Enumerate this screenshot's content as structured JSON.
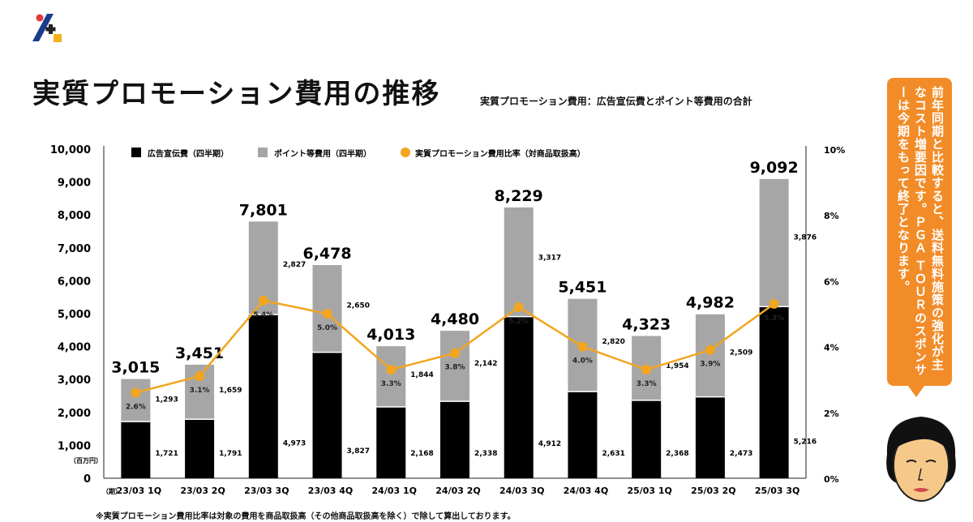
{
  "page": {
    "title": "実質プロモーション費用の推移",
    "subtitle": "実質プロモーション費用：広告宣伝費とポイント等費用の合計",
    "footnote": "※実質プロモーション費用比率は対象の費用を商品取扱高（その他商品取扱高を除く）で除して算出しております。"
  },
  "speech_bubble": {
    "text": "前年同期と比較すると、送料無料施策の強化が主なコスト増要因です。ＰＧＡ ＴＯＵＲのスポンサーは今期をもって終了となります。"
  },
  "colors": {
    "ad": "#000000",
    "point": "#a6a6a6",
    "ratio": "#f2a520",
    "bubble": "#f28c28"
  },
  "icons": [
    "logo-icon",
    "avatar-icon"
  ],
  "chart_data": {
    "type": "bar",
    "stacked": true,
    "categories": [
      "23/03 1Q",
      "23/03 2Q",
      "23/03 3Q",
      "23/03 4Q",
      "24/03 1Q",
      "24/03 2Q",
      "24/03 3Q",
      "24/03 4Q",
      "25/03 1Q",
      "25/03 2Q",
      "25/03 3Q"
    ],
    "series": [
      {
        "name": "広告宣伝費（四半期）",
        "values": [
          1721,
          1791,
          4973,
          3827,
          2168,
          2338,
          4912,
          2631,
          2368,
          2473,
          5216
        ],
        "labels": [
          "1,721",
          "1,791",
          "4,973",
          "3,827",
          "2,168",
          "2,338",
          "4,912",
          "2,631",
          "2,368",
          "2,473",
          "5,216"
        ]
      },
      {
        "name": "ポイント等費用（四半期）",
        "values": [
          1293,
          1659,
          2827,
          2650,
          1844,
          2142,
          3317,
          2820,
          1954,
          2509,
          3876
        ],
        "labels": [
          "1,293",
          "1,659",
          "2,827",
          "2,650",
          "1,844",
          "2,142",
          "3,317",
          "2,820",
          "1,954",
          "2,509",
          "3,876"
        ]
      }
    ],
    "totals": [
      3015,
      3451,
      7801,
      6478,
      4013,
      4480,
      8229,
      5451,
      4323,
      4982,
      9092
    ],
    "total_labels": [
      "3,015",
      "3,451",
      "7,801",
      "6,478",
      "4,013",
      "4,480",
      "8,229",
      "5,451",
      "4,323",
      "4,982",
      "9,092"
    ],
    "line_series": {
      "name": "実質プロモーション費用比率（対商品取扱高）",
      "axis": "right",
      "values": [
        2.6,
        3.1,
        5.4,
        5.0,
        3.3,
        3.8,
        5.2,
        4.0,
        3.3,
        3.9,
        5.3
      ],
      "labels": [
        "2.6%",
        "3.1%",
        "5.4%",
        "5.0%",
        "3.3%",
        "3.8%",
        "5.2%",
        "4.0%",
        "3.3%",
        "3.9%",
        "5.3%"
      ]
    },
    "y_left": {
      "range": [
        0,
        10000
      ],
      "ticks": [
        0,
        1000,
        2000,
        3000,
        4000,
        5000,
        6000,
        7000,
        8000,
        9000,
        10000
      ],
      "tick_labels": [
        "0",
        "1,000",
        "2,000",
        "3,000",
        "4,000",
        "5,000",
        "6,000",
        "7,000",
        "8,000",
        "9,000",
        "10,000"
      ],
      "unit": "（百万円）"
    },
    "y_right": {
      "range": [
        0,
        10
      ],
      "ticks": [
        0,
        2,
        4,
        6,
        8,
        10
      ],
      "tick_labels": [
        "0%",
        "2%",
        "4%",
        "6%",
        "8%",
        "10%"
      ]
    },
    "x_prefix": "（期）",
    "legend_position": "top",
    "grid": false
  }
}
